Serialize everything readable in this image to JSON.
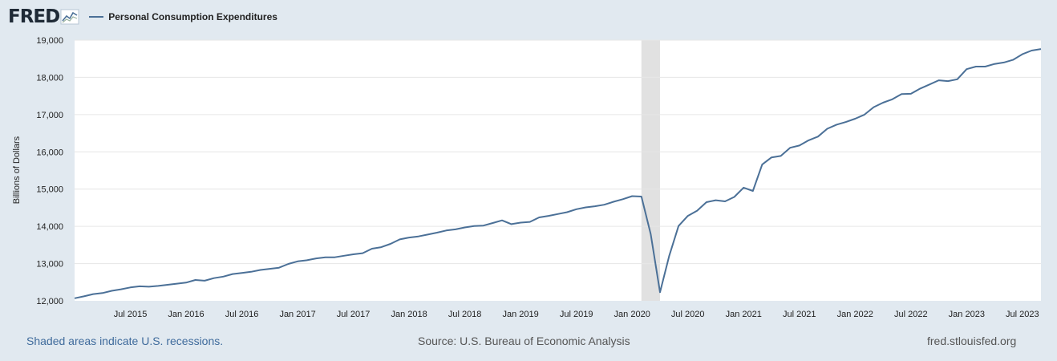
{
  "brand": {
    "logo_text": "FRED"
  },
  "legend": {
    "label": "Personal Consumption Expenditures"
  },
  "colors": {
    "series": "#4b7097",
    "recession": "#e1e1e1",
    "grid": "#e6e6e6",
    "background": "#e1e9f0"
  },
  "footer": {
    "recession_note": "Shaded areas indicate U.S. recessions.",
    "source": "Source: U.S. Bureau of Economic Analysis",
    "site": "fred.stlouisfed.org"
  },
  "chart_data": {
    "type": "line",
    "ylabel": "Billions of Dollars",
    "ylim": [
      12000,
      19000
    ],
    "yticks": [
      "12,000",
      "13,000",
      "14,000",
      "15,000",
      "16,000",
      "17,000",
      "18,000",
      "19,000"
    ],
    "xlim": [
      "2015-01",
      "2023-09"
    ],
    "xticks": [
      {
        "date": "2015-07",
        "label": "Jul 2015"
      },
      {
        "date": "2016-01",
        "label": "Jan 2016"
      },
      {
        "date": "2016-07",
        "label": "Jul 2016"
      },
      {
        "date": "2017-01",
        "label": "Jan 2017"
      },
      {
        "date": "2017-07",
        "label": "Jul 2017"
      },
      {
        "date": "2018-01",
        "label": "Jan 2018"
      },
      {
        "date": "2018-07",
        "label": "Jul 2018"
      },
      {
        "date": "2019-01",
        "label": "Jan 2019"
      },
      {
        "date": "2019-07",
        "label": "Jul 2019"
      },
      {
        "date": "2020-01",
        "label": "Jan 2020"
      },
      {
        "date": "2020-07",
        "label": "Jul 2020"
      },
      {
        "date": "2021-01",
        "label": "Jan 2021"
      },
      {
        "date": "2021-07",
        "label": "Jul 2021"
      },
      {
        "date": "2022-01",
        "label": "Jan 2022"
      },
      {
        "date": "2022-07",
        "label": "Jul 2022"
      },
      {
        "date": "2023-01",
        "label": "Jan 2023"
      },
      {
        "date": "2023-07",
        "label": "Jul 2023"
      }
    ],
    "recessions": [
      {
        "start": "2020-02",
        "end": "2020-04"
      }
    ],
    "grid": true,
    "series": [
      {
        "name": "Personal Consumption Expenditures",
        "x": [
          "2015-01",
          "2015-02",
          "2015-03",
          "2015-04",
          "2015-05",
          "2015-06",
          "2015-07",
          "2015-08",
          "2015-09",
          "2015-10",
          "2015-11",
          "2015-12",
          "2016-01",
          "2016-02",
          "2016-03",
          "2016-04",
          "2016-05",
          "2016-06",
          "2016-07",
          "2016-08",
          "2016-09",
          "2016-10",
          "2016-11",
          "2016-12",
          "2017-01",
          "2017-02",
          "2017-03",
          "2017-04",
          "2017-05",
          "2017-06",
          "2017-07",
          "2017-08",
          "2017-09",
          "2017-10",
          "2017-11",
          "2017-12",
          "2018-01",
          "2018-02",
          "2018-03",
          "2018-04",
          "2018-05",
          "2018-06",
          "2018-07",
          "2018-08",
          "2018-09",
          "2018-10",
          "2018-11",
          "2018-12",
          "2019-01",
          "2019-02",
          "2019-03",
          "2019-04",
          "2019-05",
          "2019-06",
          "2019-07",
          "2019-08",
          "2019-09",
          "2019-10",
          "2019-11",
          "2019-12",
          "2020-01",
          "2020-02",
          "2020-03",
          "2020-04",
          "2020-05",
          "2020-06",
          "2020-07",
          "2020-08",
          "2020-09",
          "2020-10",
          "2020-11",
          "2020-12",
          "2021-01",
          "2021-02",
          "2021-03",
          "2021-04",
          "2021-05",
          "2021-06",
          "2021-07",
          "2021-08",
          "2021-09",
          "2021-10",
          "2021-11",
          "2021-12",
          "2022-01",
          "2022-02",
          "2022-03",
          "2022-04",
          "2022-05",
          "2022-06",
          "2022-07",
          "2022-08",
          "2022-09",
          "2022-10",
          "2022-11",
          "2022-12",
          "2023-01",
          "2023-02",
          "2023-03",
          "2023-04",
          "2023-05",
          "2023-06",
          "2023-07",
          "2023-08",
          "2023-09"
        ],
        "values": [
          12070,
          12120,
          12180,
          12210,
          12270,
          12310,
          12360,
          12390,
          12380,
          12400,
          12430,
          12460,
          12490,
          12560,
          12540,
          12610,
          12650,
          12720,
          12750,
          12780,
          12830,
          12860,
          12890,
          12990,
          13060,
          13090,
          13140,
          13170,
          13170,
          13210,
          13250,
          13280,
          13400,
          13440,
          13530,
          13650,
          13700,
          13730,
          13780,
          13830,
          13890,
          13920,
          13970,
          14010,
          14020,
          14090,
          14160,
          14060,
          14100,
          14120,
          14240,
          14280,
          14330,
          14380,
          14460,
          14510,
          14540,
          14580,
          14660,
          14730,
          14810,
          14800,
          13790,
          12230,
          13210,
          14010,
          14280,
          14420,
          14650,
          14700,
          14670,
          14790,
          15040,
          14950,
          15660,
          15850,
          15890,
          16110,
          16170,
          16310,
          16410,
          16620,
          16730,
          16800,
          16890,
          17000,
          17200,
          17320,
          17410,
          17550,
          17560,
          17700,
          17810,
          17920,
          17900,
          17950,
          18220,
          18290,
          18290,
          18360,
          18400,
          18470,
          18620,
          18720,
          18760
        ]
      }
    ]
  }
}
